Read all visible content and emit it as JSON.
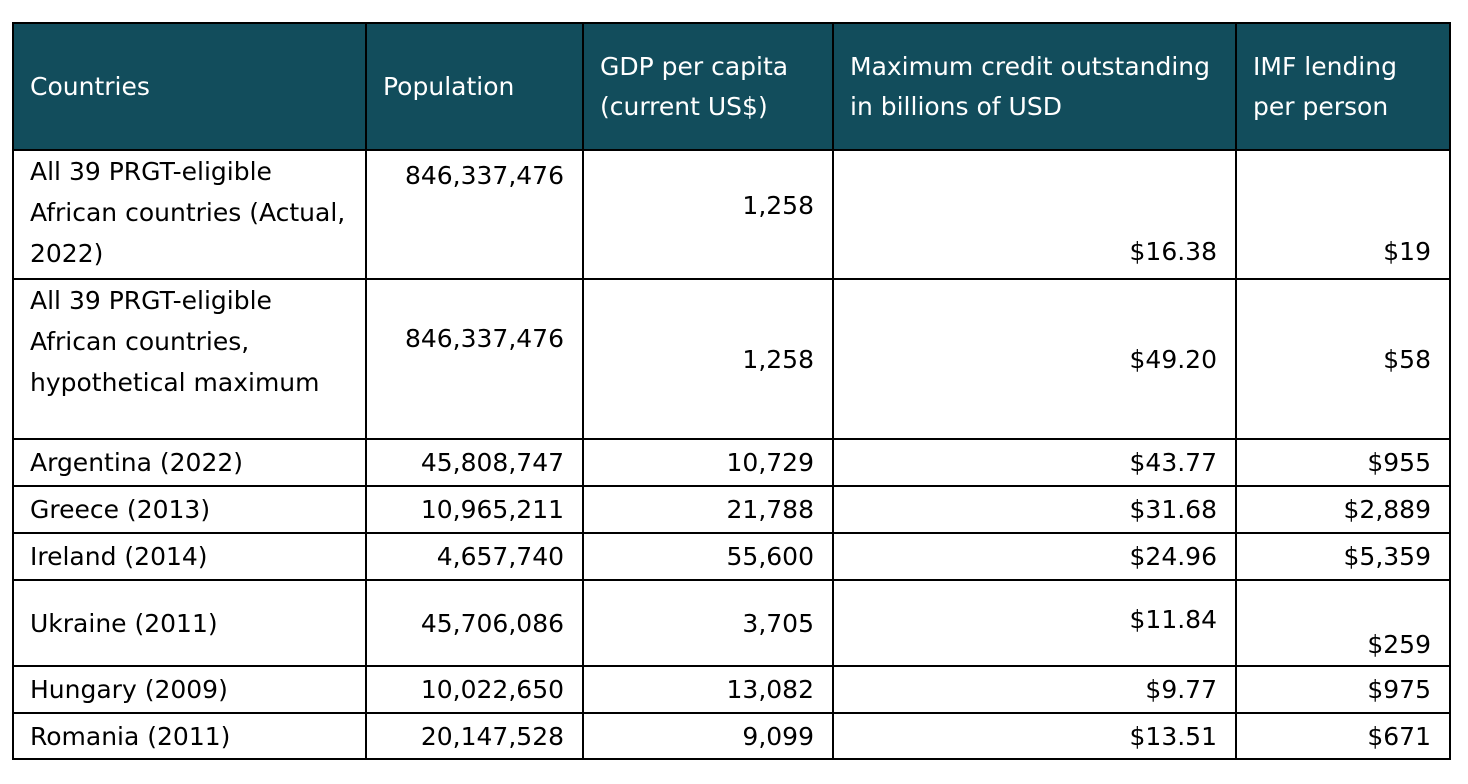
{
  "table": {
    "headers": [
      "Countries",
      "Population",
      "GDP per capita (current US$)",
      "Maximum credit outstanding in billions of USD",
      "IMF lending per person"
    ],
    "rows": [
      [
        "All 39 PRGT-eligible African countries (Actual, 2022)",
        "846,337,476",
        "1,258",
        "$16.38",
        "$19"
      ],
      [
        "All 39 PRGT-eligible African countries, hypothetical maximum",
        "846,337,476",
        "1,258",
        "$49.20",
        "$58"
      ],
      [
        "Argentina (2022)",
        "45,808,747",
        "10,729",
        "$43.77",
        "$955"
      ],
      [
        "Greece (2013)",
        "10,965,211",
        "21,788",
        "$31.68",
        "$2,889"
      ],
      [
        "Ireland (2014)",
        "4,657,740",
        "55,600",
        "$24.96",
        "$5,359"
      ],
      [
        "Ukraine (2011)",
        "45,706,086",
        "3,705",
        "$11.84",
        "$259"
      ],
      [
        "Hungary (2009)",
        "10,022,650",
        "13,082",
        "$9.77",
        "$975"
      ],
      [
        "Romania (2011)",
        "20,147,528",
        "9,099",
        "$13.51",
        "$671"
      ]
    ]
  },
  "colors": {
    "header_background": "#124d5c",
    "header_text": "#ffffff",
    "border": "#000000"
  }
}
